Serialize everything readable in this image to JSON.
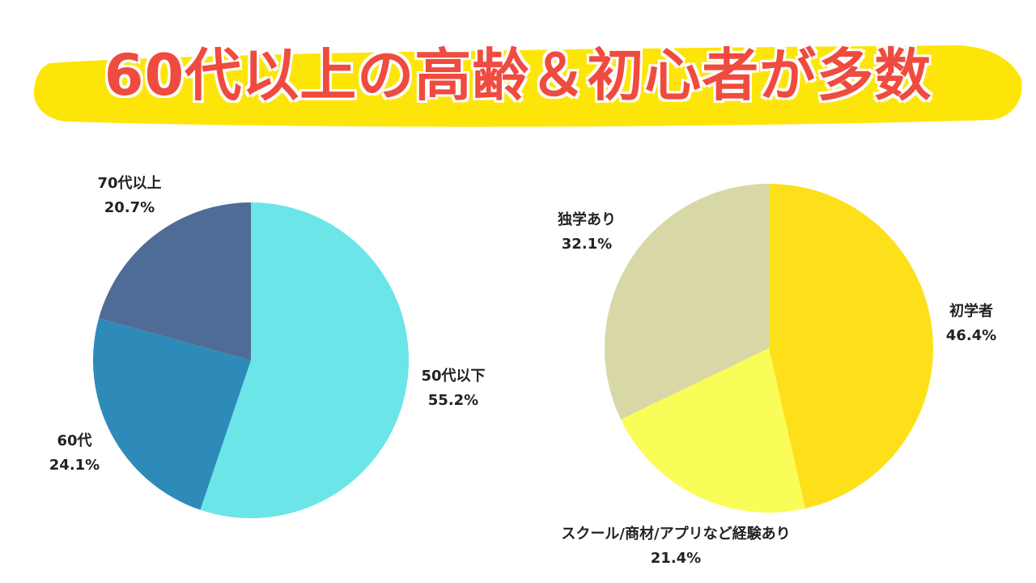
{
  "headline": "60代以上の高齢＆初心者が多数",
  "colors": {
    "headline_text": "#ef4b3f",
    "highlight": "#fde50a"
  },
  "chart_data": [
    {
      "type": "pie",
      "categories": [
        "50代以下",
        "60代",
        "70代以上"
      ],
      "values": [
        55.2,
        24.1,
        20.7
      ],
      "labels": [
        "55.2%",
        "24.1%",
        "20.7%"
      ],
      "colors": [
        "#6be5e8",
        "#2e8bb9",
        "#4e6c96"
      ]
    },
    {
      "type": "pie",
      "categories": [
        "初学者",
        "スクール/商材/アプリなど経験あり",
        "独学あり"
      ],
      "values": [
        46.4,
        21.4,
        32.1
      ],
      "labels": [
        "46.4%",
        "21.4%",
        "32.1%"
      ],
      "colors": [
        "#fde01a",
        "#fafc57",
        "#d8d8a6"
      ]
    }
  ]
}
